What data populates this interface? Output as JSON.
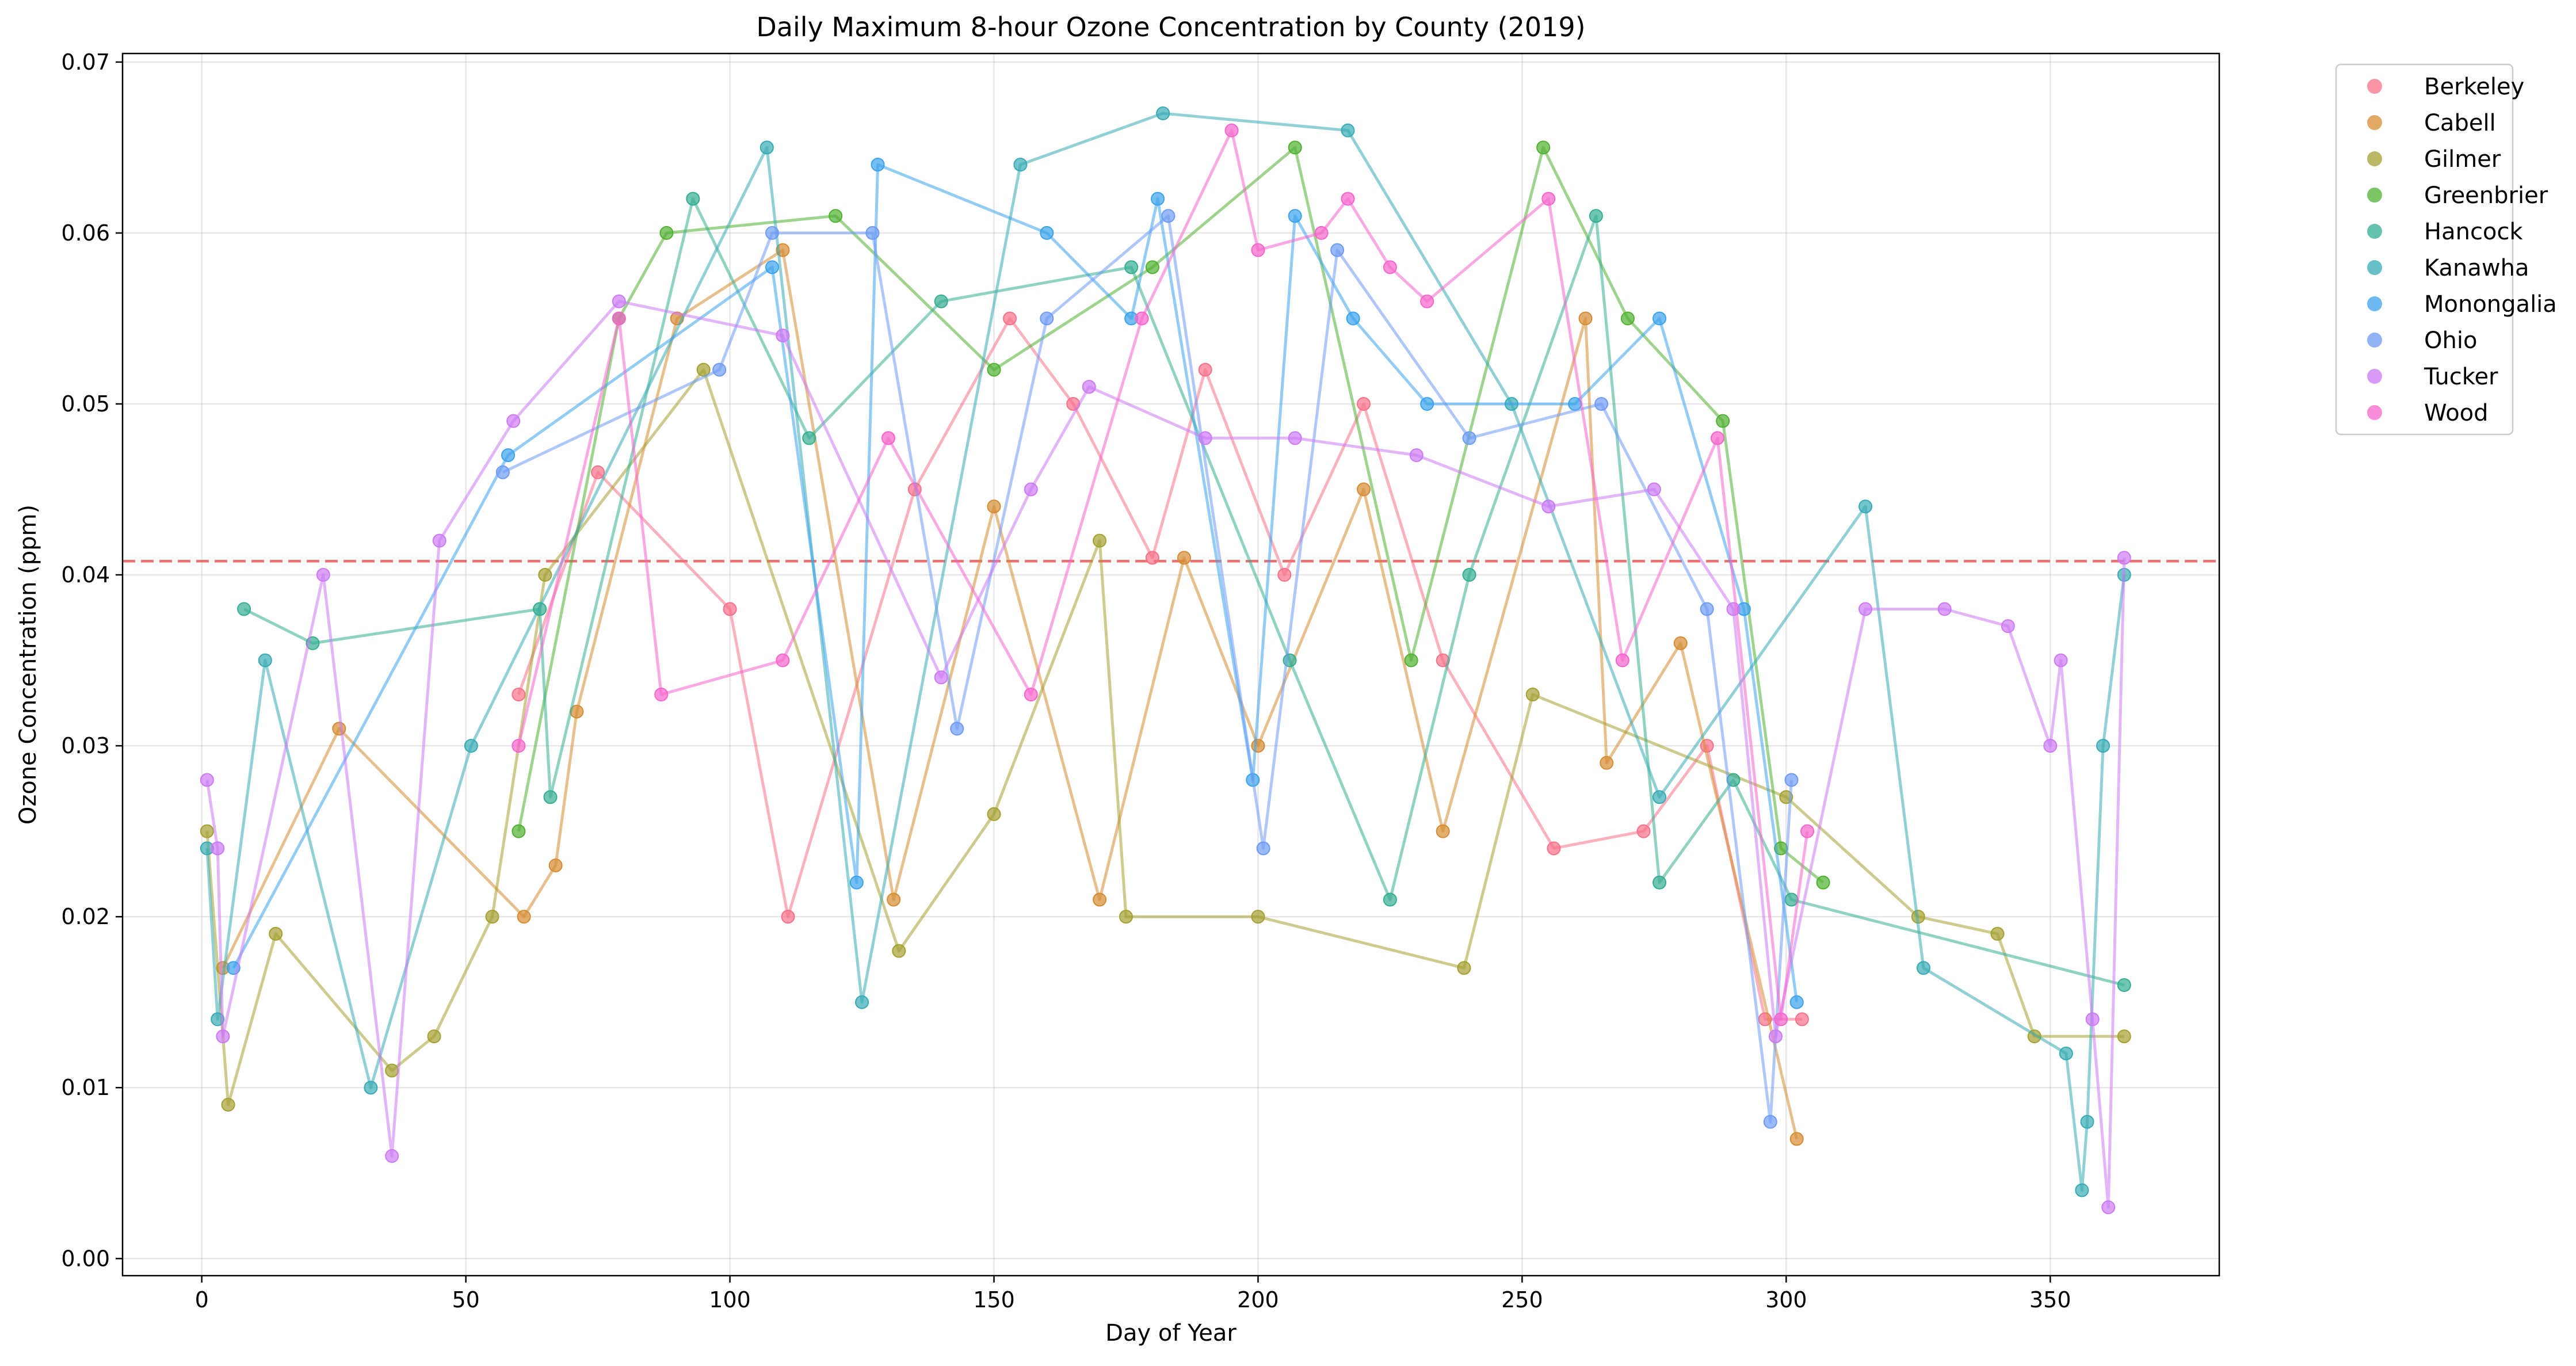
{
  "chart_data": {
    "type": "line",
    "title": "Daily Maximum 8-hour Ozone Concentration by County (2019)",
    "xlabel": "Day of Year",
    "ylabel": "Ozone Concentration (ppm)",
    "xlim": [
      -15,
      382
    ],
    "ylim": [
      -0.001,
      0.0705
    ],
    "xticks": [
      0,
      50,
      100,
      150,
      200,
      250,
      300,
      350
    ],
    "yticks": [
      0.0,
      0.01,
      0.02,
      0.03,
      0.04,
      0.05,
      0.06,
      0.07
    ],
    "ytick_labels": [
      "0.00",
      "0.01",
      "0.02",
      "0.03",
      "0.04",
      "0.05",
      "0.06",
      "0.07"
    ],
    "grid": true,
    "legend_position": "outside-top-right",
    "reference_line": {
      "y": 0.0408,
      "style": "dashed",
      "color": "#e8413f"
    },
    "series": [
      {
        "name": "Berkeley",
        "color": "#f77189"
      },
      {
        "name": "Cabell",
        "color": "#d58c32"
      },
      {
        "name": "Gilmer",
        "color": "#a4a031"
      },
      {
        "name": "Greenbrier",
        "color": "#50b131"
      },
      {
        "name": "Hancock",
        "color": "#34ae91"
      },
      {
        "name": "Kanawha",
        "color": "#37abb5"
      },
      {
        "name": "Monongalia",
        "color": "#3ba3ec"
      },
      {
        "name": "Ohio",
        "color": "#6e9bf4"
      },
      {
        "name": "Tucker",
        "color": "#cc7af4"
      },
      {
        "name": "Wood",
        "color": "#f565cc"
      }
    ],
    "points": {
      "Berkeley": [
        [
          60,
          0.033
        ],
        [
          75,
          0.046
        ],
        [
          100,
          0.038
        ],
        [
          111,
          0.02
        ],
        [
          135,
          0.045
        ],
        [
          153,
          0.055
        ],
        [
          165,
          0.05
        ],
        [
          180,
          0.041
        ],
        [
          190,
          0.052
        ],
        [
          205,
          0.04
        ],
        [
          220,
          0.05
        ],
        [
          235,
          0.035
        ],
        [
          256,
          0.024
        ],
        [
          273,
          0.025
        ],
        [
          285,
          0.03
        ],
        [
          296,
          0.014
        ],
        [
          303,
          0.014
        ]
      ],
      "Cabell": [
        [
          4,
          0.017
        ],
        [
          26,
          0.031
        ],
        [
          61,
          0.02
        ],
        [
          67,
          0.023
        ],
        [
          71,
          0.032
        ],
        [
          90,
          0.055
        ],
        [
          110,
          0.059
        ],
        [
          131,
          0.021
        ],
        [
          150,
          0.044
        ],
        [
          170,
          0.021
        ],
        [
          186,
          0.041
        ],
        [
          200,
          0.03
        ],
        [
          220,
          0.045
        ],
        [
          235,
          0.025
        ],
        [
          262,
          0.055
        ],
        [
          266,
          0.029
        ],
        [
          280,
          0.036
        ],
        [
          302,
          0.007
        ]
      ],
      "Gilmer": [
        [
          1,
          0.025
        ],
        [
          5,
          0.009
        ],
        [
          14,
          0.019
        ],
        [
          36,
          0.011
        ],
        [
          44,
          0.013
        ],
        [
          55,
          0.02
        ],
        [
          65,
          0.04
        ],
        [
          95,
          0.052
        ],
        [
          132,
          0.018
        ],
        [
          150,
          0.026
        ],
        [
          170,
          0.042
        ],
        [
          175,
          0.02
        ],
        [
          200,
          0.02
        ],
        [
          239,
          0.017
        ],
        [
          252,
          0.033
        ],
        [
          300,
          0.027
        ],
        [
          325,
          0.02
        ],
        [
          340,
          0.019
        ],
        [
          347,
          0.013
        ],
        [
          364,
          0.013
        ]
      ],
      "Greenbrier": [
        [
          60,
          0.025
        ],
        [
          79,
          0.055
        ],
        [
          88,
          0.06
        ],
        [
          120,
          0.061
        ],
        [
          150,
          0.052
        ],
        [
          180,
          0.058
        ],
        [
          207,
          0.065
        ],
        [
          229,
          0.035
        ],
        [
          254,
          0.065
        ],
        [
          270,
          0.055
        ],
        [
          288,
          0.049
        ],
        [
          299,
          0.024
        ],
        [
          307,
          0.022
        ]
      ],
      "Hancock": [
        [
          8,
          0.038
        ],
        [
          21,
          0.036
        ],
        [
          64,
          0.038
        ],
        [
          66,
          0.027
        ],
        [
          93,
          0.062
        ],
        [
          115,
          0.048
        ],
        [
          140,
          0.056
        ],
        [
          176,
          0.058
        ],
        [
          206,
          0.035
        ],
        [
          225,
          0.021
        ],
        [
          240,
          0.04
        ],
        [
          264,
          0.061
        ],
        [
          276,
          0.022
        ],
        [
          290,
          0.028
        ],
        [
          301,
          0.021
        ],
        [
          364,
          0.016
        ]
      ],
      "Kanawha": [
        [
          1,
          0.024
        ],
        [
          3,
          0.014
        ],
        [
          12,
          0.035
        ],
        [
          32,
          0.01
        ],
        [
          51,
          0.03
        ],
        [
          107,
          0.065
        ],
        [
          125,
          0.015
        ],
        [
          155,
          0.064
        ],
        [
          182,
          0.067
        ],
        [
          217,
          0.066
        ],
        [
          248,
          0.05
        ],
        [
          276,
          0.027
        ],
        [
          315,
          0.044
        ],
        [
          326,
          0.017
        ],
        [
          353,
          0.012
        ],
        [
          356,
          0.004
        ],
        [
          357,
          0.008
        ],
        [
          360,
          0.03
        ],
        [
          364,
          0.04
        ]
      ],
      "Monongalia": [
        [
          6,
          0.017
        ],
        [
          58,
          0.047
        ],
        [
          108,
          0.058
        ],
        [
          124,
          0.022
        ],
        [
          128,
          0.064
        ],
        [
          160,
          0.06
        ],
        [
          176,
          0.055
        ],
        [
          181,
          0.062
        ],
        [
          199,
          0.028
        ],
        [
          207,
          0.061
        ],
        [
          218,
          0.055
        ],
        [
          232,
          0.05
        ],
        [
          260,
          0.05
        ],
        [
          276,
          0.055
        ],
        [
          292,
          0.038
        ],
        [
          302,
          0.015
        ]
      ],
      "Ohio": [
        [
          57,
          0.046
        ],
        [
          98,
          0.052
        ],
        [
          108,
          0.06
        ],
        [
          127,
          0.06
        ],
        [
          143,
          0.031
        ],
        [
          160,
          0.055
        ],
        [
          183,
          0.061
        ],
        [
          201,
          0.024
        ],
        [
          215,
          0.059
        ],
        [
          240,
          0.048
        ],
        [
          265,
          0.05
        ],
        [
          285,
          0.038
        ],
        [
          297,
          0.008
        ],
        [
          301,
          0.028
        ]
      ],
      "Tucker": [
        [
          1,
          0.028
        ],
        [
          3,
          0.024
        ],
        [
          4,
          0.013
        ],
        [
          23,
          0.04
        ],
        [
          36,
          0.006
        ],
        [
          45,
          0.042
        ],
        [
          59,
          0.049
        ],
        [
          79,
          0.056
        ],
        [
          110,
          0.054
        ],
        [
          140,
          0.034
        ],
        [
          157,
          0.045
        ],
        [
          168,
          0.051
        ],
        [
          190,
          0.048
        ],
        [
          207,
          0.048
        ],
        [
          230,
          0.047
        ],
        [
          255,
          0.044
        ],
        [
          275,
          0.045
        ],
        [
          290,
          0.038
        ],
        [
          298,
          0.013
        ],
        [
          315,
          0.038
        ],
        [
          330,
          0.038
        ],
        [
          342,
          0.037
        ],
        [
          350,
          0.03
        ],
        [
          352,
          0.035
        ],
        [
          358,
          0.014
        ],
        [
          361,
          0.003
        ],
        [
          364,
          0.041
        ]
      ],
      "Wood": [
        [
          60,
          0.03
        ],
        [
          79,
          0.055
        ],
        [
          87,
          0.033
        ],
        [
          110,
          0.035
        ],
        [
          130,
          0.048
        ],
        [
          157,
          0.033
        ],
        [
          178,
          0.055
        ],
        [
          195,
          0.066
        ],
        [
          200,
          0.059
        ],
        [
          212,
          0.06
        ],
        [
          217,
          0.062
        ],
        [
          225,
          0.058
        ],
        [
          232,
          0.056
        ],
        [
          255,
          0.062
        ],
        [
          269,
          0.035
        ],
        [
          287,
          0.048
        ],
        [
          299,
          0.014
        ],
        [
          304,
          0.025
        ]
      ]
    }
  }
}
